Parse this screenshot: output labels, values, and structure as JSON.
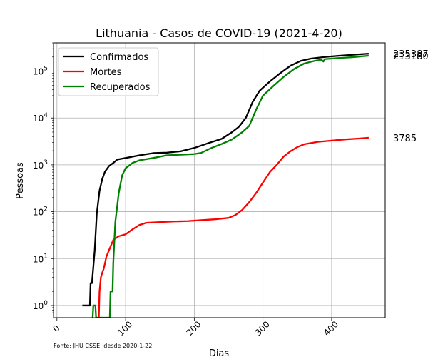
{
  "chart_data": {
    "type": "line",
    "title": "Lithuania - Casos de COVID-19 (2021-4-20)",
    "xlabel": "Dias",
    "ylabel": "Pessoas",
    "yscale": "log",
    "xlim": [
      -5,
      478
    ],
    "ylim": [
      0.55,
      400000
    ],
    "xticks": [
      0,
      100,
      200,
      300,
      400
    ],
    "xtick_labels": [
      "0",
      "100",
      "200",
      "300",
      "400"
    ],
    "xtick_rotation": 45,
    "yticks": [
      1,
      10,
      100,
      1000,
      10000,
      100000
    ],
    "ytick_labels": [
      "10^0",
      "10^1",
      "10^2",
      "10^3",
      "10^4",
      "10^5"
    ],
    "grid": true,
    "legend_position": "top-left",
    "footnote": "Fonte: JHU CSSE, desde 2020-1-22",
    "series": [
      {
        "name": "Confirmados",
        "color": "#000000",
        "end_label": "235387",
        "points": [
          [
            37,
            1
          ],
          [
            48,
            1
          ],
          [
            49,
            3
          ],
          [
            51,
            3
          ],
          [
            55,
            15
          ],
          [
            58,
            90
          ],
          [
            62,
            280
          ],
          [
            66,
            500
          ],
          [
            70,
            720
          ],
          [
            76,
            950
          ],
          [
            82,
            1100
          ],
          [
            88,
            1300
          ],
          [
            100,
            1400
          ],
          [
            120,
            1600
          ],
          [
            140,
            1780
          ],
          [
            160,
            1820
          ],
          [
            180,
            1950
          ],
          [
            200,
            2300
          ],
          [
            220,
            2900
          ],
          [
            240,
            3600
          ],
          [
            255,
            5000
          ],
          [
            265,
            6500
          ],
          [
            275,
            10000
          ],
          [
            285,
            22000
          ],
          [
            295,
            38000
          ],
          [
            310,
            60000
          ],
          [
            325,
            90000
          ],
          [
            340,
            130000
          ],
          [
            355,
            165000
          ],
          [
            370,
            185000
          ],
          [
            390,
            200000
          ],
          [
            410,
            212000
          ],
          [
            430,
            222000
          ],
          [
            454,
            235387
          ]
        ]
      },
      {
        "name": "Mortes",
        "color": "#ff0000",
        "end_label": "3785",
        "points": [
          [
            61,
            0.5
          ],
          [
            62,
            2
          ],
          [
            64,
            4
          ],
          [
            66,
            5
          ],
          [
            68,
            6
          ],
          [
            70,
            8
          ],
          [
            72,
            11
          ],
          [
            74,
            13
          ],
          [
            78,
            18
          ],
          [
            82,
            25
          ],
          [
            90,
            30
          ],
          [
            100,
            33
          ],
          [
            110,
            42
          ],
          [
            120,
            52
          ],
          [
            130,
            58
          ],
          [
            150,
            60
          ],
          [
            170,
            62
          ],
          [
            190,
            63
          ],
          [
            210,
            66
          ],
          [
            230,
            69
          ],
          [
            250,
            74
          ],
          [
            260,
            85
          ],
          [
            270,
            110
          ],
          [
            280,
            160
          ],
          [
            290,
            250
          ],
          [
            300,
            420
          ],
          [
            310,
            700
          ],
          [
            320,
            1000
          ],
          [
            330,
            1500
          ],
          [
            340,
            1950
          ],
          [
            350,
            2400
          ],
          [
            360,
            2750
          ],
          [
            380,
            3100
          ],
          [
            400,
            3300
          ],
          [
            420,
            3500
          ],
          [
            440,
            3650
          ],
          [
            454,
            3785
          ]
        ]
      },
      {
        "name": "Recuperados",
        "color": "#008000",
        "end_label": "213180",
        "points": [
          [
            52,
            0.5
          ],
          [
            53,
            1
          ],
          [
            56,
            1
          ],
          [
            57,
            0.5
          ],
          [
            77,
            0.5
          ],
          [
            78,
            2
          ],
          [
            81,
            2
          ],
          [
            82,
            8
          ],
          [
            85,
            60
          ],
          [
            90,
            250
          ],
          [
            95,
            600
          ],
          [
            100,
            850
          ],
          [
            110,
            1100
          ],
          [
            120,
            1250
          ],
          [
            140,
            1400
          ],
          [
            160,
            1600
          ],
          [
            180,
            1650
          ],
          [
            200,
            1700
          ],
          [
            210,
            1800
          ],
          [
            225,
            2300
          ],
          [
            240,
            2800
          ],
          [
            255,
            3500
          ],
          [
            270,
            5000
          ],
          [
            280,
            6800
          ],
          [
            290,
            15000
          ],
          [
            300,
            30000
          ],
          [
            315,
            48000
          ],
          [
            330,
            75000
          ],
          [
            345,
            110000
          ],
          [
            360,
            145000
          ],
          [
            375,
            165000
          ],
          [
            385,
            175000
          ],
          [
            388,
            160000
          ],
          [
            390,
            180000
          ],
          [
            410,
            190000
          ],
          [
            430,
            198000
          ],
          [
            454,
            213180
          ]
        ]
      }
    ]
  }
}
